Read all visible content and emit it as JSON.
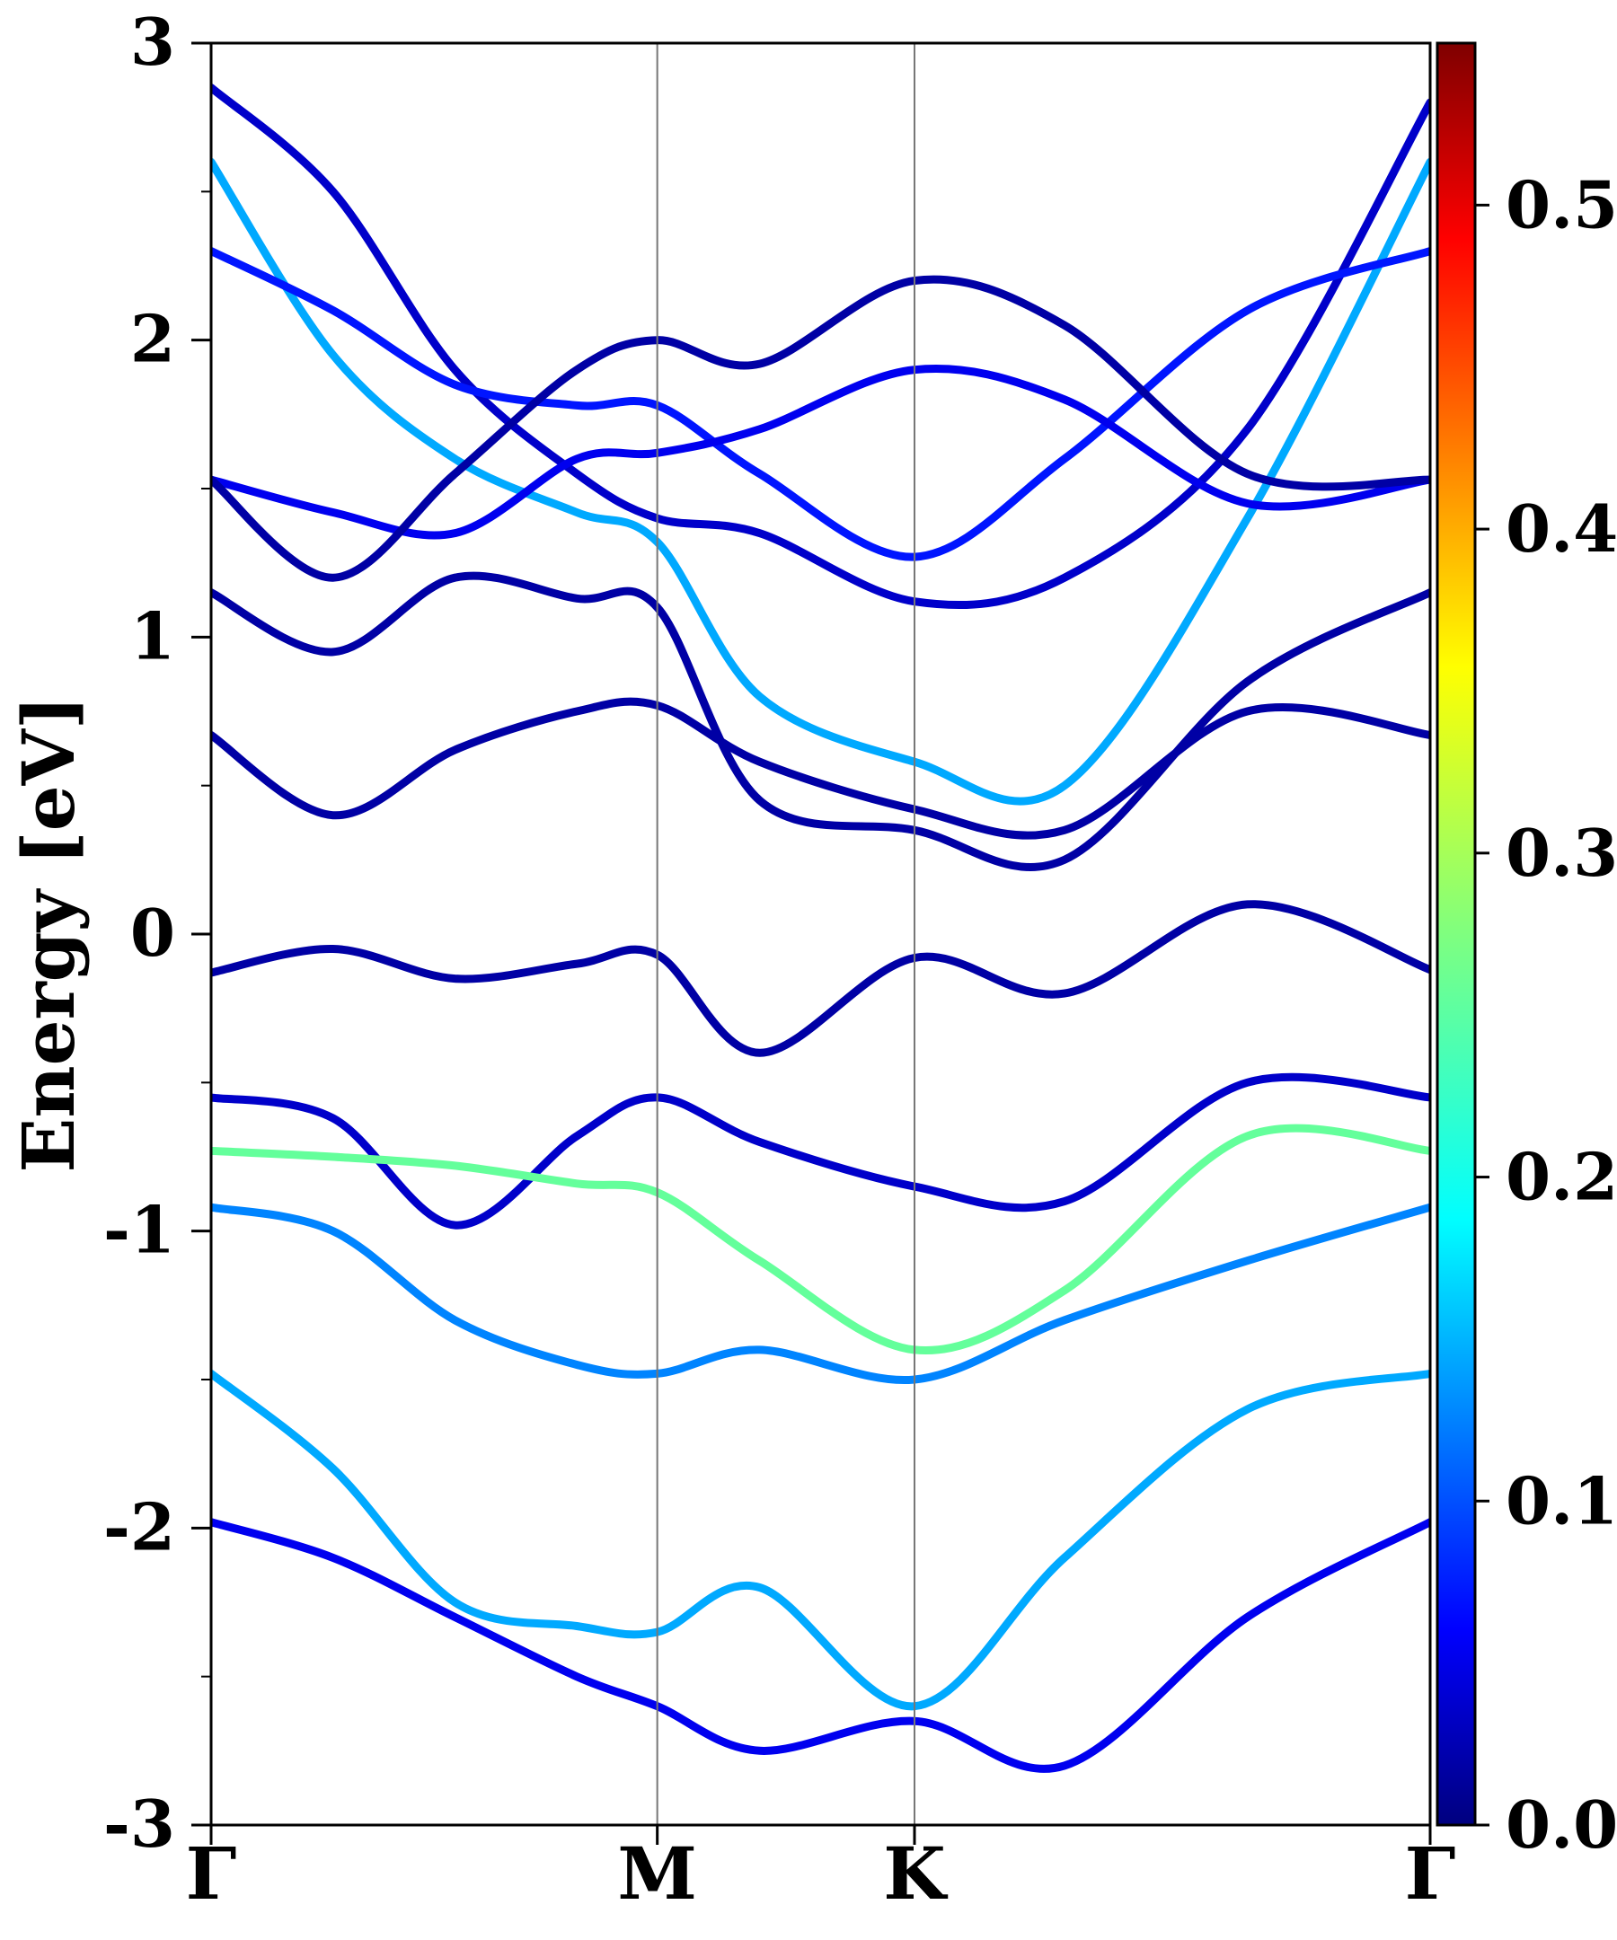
{
  "chart_data": {
    "type": "line",
    "title": "",
    "ylabel": "Energy [eV]",
    "xlabel": "",
    "ylim": [
      -3,
      3
    ],
    "yticks": [
      "3",
      "2",
      "1",
      "0",
      "-1",
      "-2",
      "-3"
    ],
    "ytick_values": [
      3,
      2,
      1,
      0,
      -1,
      -2,
      -3
    ],
    "high_symmetry_points": [
      {
        "label": "Γ",
        "x": 0.0
      },
      {
        "label": "M",
        "x": 0.366
      },
      {
        "label": "K",
        "x": 0.577
      },
      {
        "label": "Γ",
        "x": 1.0
      }
    ],
    "colorbar": {
      "colormap": "jet",
      "range": [
        0.0,
        0.55
      ],
      "ticks": [
        "0.0",
        "0.1",
        "0.2",
        "0.3",
        "0.4",
        "0.5"
      ],
      "tick_values": [
        0.0,
        0.1,
        0.2,
        0.3,
        0.4,
        0.5
      ]
    },
    "series": [
      {
        "x": [
          0,
          0.1,
          0.2,
          0.3,
          0.366,
          0.45,
          0.577,
          0.7,
          0.85,
          1.0
        ],
        "y": [
          2.85,
          2.5,
          1.9,
          1.55,
          1.4,
          1.35,
          1.12,
          1.2,
          1.7,
          2.8
        ],
        "weight": 0.04
      },
      {
        "x": [
          0,
          0.1,
          0.2,
          0.3,
          0.366,
          0.45,
          0.577,
          0.7,
          0.85,
          1.0
        ],
        "y": [
          2.6,
          1.95,
          1.6,
          1.42,
          1.32,
          0.8,
          0.58,
          0.5,
          1.4,
          2.6
        ],
        "weight": 0.16
      },
      {
        "x": [
          0,
          0.1,
          0.2,
          0.3,
          0.366,
          0.45,
          0.577,
          0.7,
          0.85,
          1.0
        ],
        "y": [
          2.3,
          2.1,
          1.85,
          1.78,
          1.78,
          1.55,
          1.27,
          1.6,
          2.1,
          2.3
        ],
        "weight": 0.08
      },
      {
        "x": [
          0,
          0.1,
          0.2,
          0.3,
          0.366,
          0.45,
          0.577,
          0.7,
          0.85,
          1.0
        ],
        "y": [
          1.53,
          1.42,
          1.35,
          1.6,
          1.62,
          1.7,
          1.9,
          1.8,
          1.45,
          1.53
        ],
        "weight": 0.06
      },
      {
        "x": [
          0,
          0.1,
          0.2,
          0.3,
          0.366,
          0.45,
          0.577,
          0.7,
          0.85,
          1.0
        ],
        "y": [
          1.53,
          1.2,
          1.55,
          1.9,
          2.0,
          1.92,
          2.2,
          2.05,
          1.55,
          1.53
        ],
        "weight": 0.02
      },
      {
        "x": [
          0,
          0.1,
          0.2,
          0.3,
          0.366,
          0.45,
          0.577,
          0.7,
          0.85,
          1.0
        ],
        "y": [
          1.15,
          0.95,
          1.2,
          1.13,
          1.1,
          0.45,
          0.35,
          0.25,
          0.85,
          1.15
        ],
        "weight": 0.02
      },
      {
        "x": [
          0,
          0.1,
          0.2,
          0.3,
          0.366,
          0.45,
          0.577,
          0.7,
          0.85,
          1.0
        ],
        "y": [
          0.67,
          0.4,
          0.62,
          0.75,
          0.77,
          0.58,
          0.42,
          0.35,
          0.75,
          0.67
        ],
        "weight": 0.02
      },
      {
        "x": [
          0,
          0.1,
          0.2,
          0.3,
          0.366,
          0.45,
          0.577,
          0.7,
          0.85,
          1.0
        ],
        "y": [
          -0.13,
          -0.05,
          -0.15,
          -0.1,
          -0.07,
          -0.4,
          -0.08,
          -0.2,
          0.1,
          -0.12
        ],
        "weight": 0.02
      },
      {
        "x": [
          0,
          0.1,
          0.2,
          0.3,
          0.366,
          0.45,
          0.577,
          0.7,
          0.85,
          1.0
        ],
        "y": [
          -0.55,
          -0.62,
          -0.98,
          -0.68,
          -0.55,
          -0.7,
          -0.85,
          -0.9,
          -0.5,
          -0.55
        ],
        "weight": 0.04
      },
      {
        "x": [
          0,
          0.1,
          0.2,
          0.3,
          0.366,
          0.45,
          0.577,
          0.7,
          0.85,
          1.0
        ],
        "y": [
          -0.73,
          -0.75,
          -0.78,
          -0.84,
          -0.87,
          -1.1,
          -1.4,
          -1.2,
          -0.68,
          -0.73
        ],
        "weight": 0.26
      },
      {
        "x": [
          0,
          0.1,
          0.2,
          0.3,
          0.366,
          0.45,
          0.577,
          0.7,
          0.85,
          1.0
        ],
        "y": [
          -0.92,
          -1.0,
          -1.3,
          -1.45,
          -1.48,
          -1.4,
          -1.5,
          -1.3,
          -1.1,
          -0.92
        ],
        "weight": 0.14
      },
      {
        "x": [
          0,
          0.1,
          0.2,
          0.3,
          0.366,
          0.45,
          0.577,
          0.7,
          0.85,
          1.0
        ],
        "y": [
          -1.48,
          -1.8,
          -2.25,
          -2.33,
          -2.35,
          -2.2,
          -2.6,
          -2.1,
          -1.6,
          -1.48
        ],
        "weight": 0.16
      },
      {
        "x": [
          0,
          0.1,
          0.2,
          0.3,
          0.366,
          0.45,
          0.577,
          0.7,
          0.85,
          1.0
        ],
        "y": [
          -1.98,
          -2.1,
          -2.3,
          -2.5,
          -2.6,
          -2.75,
          -2.65,
          -2.8,
          -2.3,
          -1.98
        ],
        "weight": 0.06
      }
    ]
  }
}
